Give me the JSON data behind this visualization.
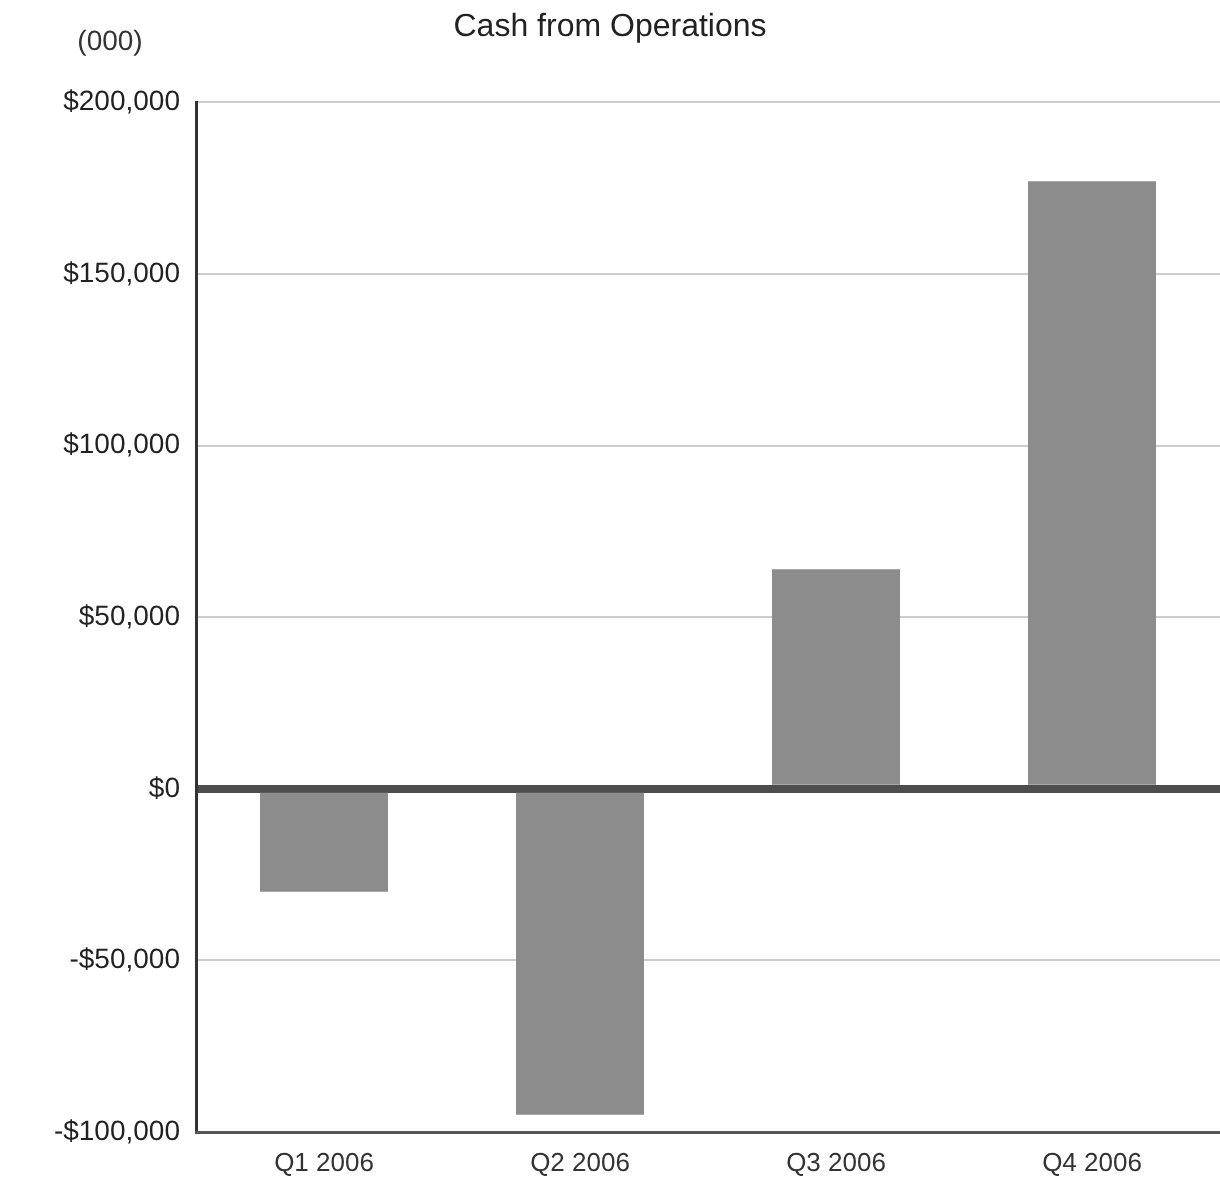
{
  "chart_data": {
    "type": "bar",
    "title": "Cash from Operations",
    "ylabel": "(000)",
    "categories": [
      "Q1 2006",
      "Q2 2006",
      "Q3 2006",
      "Q4 2006"
    ],
    "values": [
      -30000,
      -95000,
      64000,
      177000
    ],
    "color": "#8c8c8c",
    "ylim": [
      -100000,
      200000
    ],
    "yticks": [
      {
        "value": -100000,
        "label": "-$100,000"
      },
      {
        "value": -50000,
        "label": "-$50,000"
      },
      {
        "value": 0,
        "label": "$0"
      },
      {
        "value": 50000,
        "label": "$50,000"
      },
      {
        "value": 100000,
        "label": "$100,000"
      },
      {
        "value": 150000,
        "label": "$150,000"
      },
      {
        "value": 200000,
        "label": "$200,000"
      }
    ],
    "grid": "y"
  }
}
